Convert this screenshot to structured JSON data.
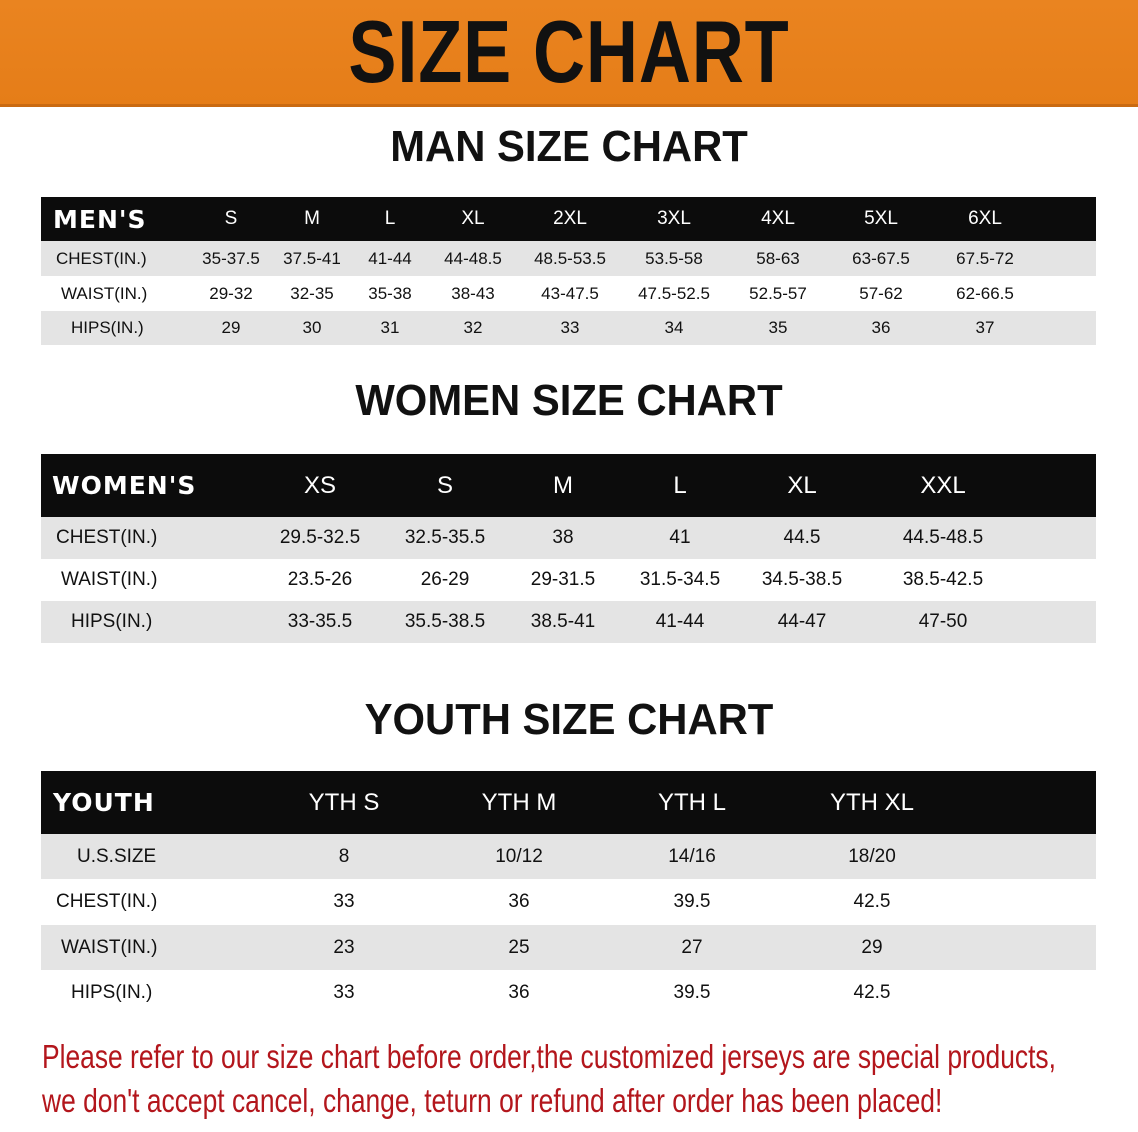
{
  "banner": {
    "title": "SIZE CHART",
    "color": "#E8821E"
  },
  "men": {
    "title": "MAN SIZE CHART",
    "header": [
      "MEN'S",
      "S",
      "M",
      "L",
      "XL",
      "2XL",
      "3XL",
      "4XL",
      "5XL",
      "6XL"
    ],
    "rows": [
      [
        "CHEST(IN.)",
        "35-37.5",
        "37.5-41",
        "41-44",
        "44-48.5",
        "48.5-53.5",
        "53.5-58",
        "58-63",
        "63-67.5",
        "67.5-72"
      ],
      [
        "WAIST(IN.)",
        "29-32",
        "32-35",
        "35-38",
        "38-43",
        "43-47.5",
        "47.5-52.5",
        "52.5-57",
        "57-62",
        "62-66.5"
      ],
      [
        "HIPS(IN.)",
        "29",
        "30",
        "31",
        "32",
        "33",
        "34",
        "35",
        "36",
        "37"
      ]
    ]
  },
  "women": {
    "title": "WOMEN SIZE CHART",
    "header": [
      "WOMEN'S",
      "XS",
      "S",
      "M",
      "L",
      "XL",
      "XXL"
    ],
    "rows": [
      [
        "CHEST(IN.)",
        "29.5-32.5",
        "32.5-35.5",
        "38",
        "41",
        "44.5",
        "44.5-48.5"
      ],
      [
        "WAIST(IN.)",
        "23.5-26",
        "26-29",
        "29-31.5",
        "31.5-34.5",
        "34.5-38.5",
        "38.5-42.5"
      ],
      [
        "HIPS(IN.)",
        "33-35.5",
        "35.5-38.5",
        "38.5-41",
        "41-44",
        "44-47",
        "47-50"
      ]
    ]
  },
  "youth": {
    "title": "YOUTH SIZE CHART",
    "header": [
      "YOUTH",
      "YTH S",
      "YTH M",
      "YTH L",
      "YTH XL"
    ],
    "rows": [
      [
        "U.S.SIZE",
        "8",
        "10/12",
        "14/16",
        "18/20"
      ],
      [
        "CHEST(IN.)",
        "33",
        "36",
        "39.5",
        "42.5"
      ],
      [
        "WAIST(IN.)",
        "23",
        "25",
        "27",
        "29"
      ],
      [
        "HIPS(IN.)",
        "33",
        "36",
        "39.5",
        "42.5"
      ]
    ]
  },
  "notice": {
    "line1": "Please refer to our size chart before order,the customized jerseys are special products,",
    "line2": "we don't accept cancel, change, teturn or refund after order has been placed!",
    "color": "#B3161C"
  }
}
